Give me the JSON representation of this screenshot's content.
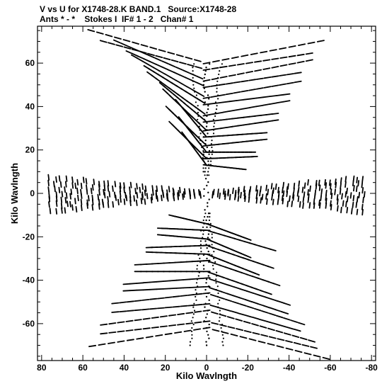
{
  "header": {
    "line1": "V vs U for X1748-28.K BAND.1   Source:X1748-28",
    "line2": "Ants * - *    Stokes I  IF# 1 - 2   Chan# 1"
  },
  "chart_data": {
    "type": "scatter",
    "title": "V vs U for X1748-28.K BAND.1   Source:X1748-28",
    "subtitle": "Ants * - *    Stokes I  IF# 1 - 2   Chan# 1",
    "xlabel": "Kilo Wavlngth",
    "ylabel": "Kilo Wavlngth",
    "xlim": [
      82,
      -82
    ],
    "ylim": [
      -77,
      77
    ],
    "xticks": [
      80,
      60,
      40,
      20,
      0,
      -20,
      -40,
      -60,
      -80
    ],
    "yticks": [
      60,
      40,
      20,
      0,
      -20,
      -40,
      -60
    ],
    "grid": false,
    "marker_color": "#000000",
    "tracks": {
      "upper_u_start": [
        52,
        41,
        34,
        28,
        22
      ],
      "upper_u_end": [
        -60,
        -54,
        -48,
        -42,
        -36,
        -30,
        -25
      ],
      "upper_v_start": [
        75,
        70,
        63,
        55,
        47,
        39,
        32,
        25,
        19
      ],
      "upper_v_at_zero": [
        60,
        52,
        44,
        36,
        29,
        22,
        16
      ],
      "upper_v_end": [
        71,
        62,
        52,
        43,
        34,
        25,
        17
      ],
      "lower_u_start": [
        -58,
        -50,
        -44,
        -36,
        -30,
        -26
      ],
      "lower_u_end": [
        60,
        54,
        48,
        42,
        36,
        30,
        24
      ],
      "lower_v_start": [
        -76,
        -68,
        -60,
        -51,
        -42,
        -34,
        -26,
        -18
      ],
      "lower_v_at_zero": [
        -62,
        -54,
        -46,
        -39,
        -31,
        -24,
        -17
      ],
      "lower_v_end": [
        -71,
        -61,
        -51,
        -42,
        -33,
        -25,
        -16
      ],
      "arm_u_outer": 77,
      "arm_u_inner": 3,
      "arm_v_halfwidth_outer": 9,
      "arm_v_halfwidth_inner": 1
    }
  }
}
